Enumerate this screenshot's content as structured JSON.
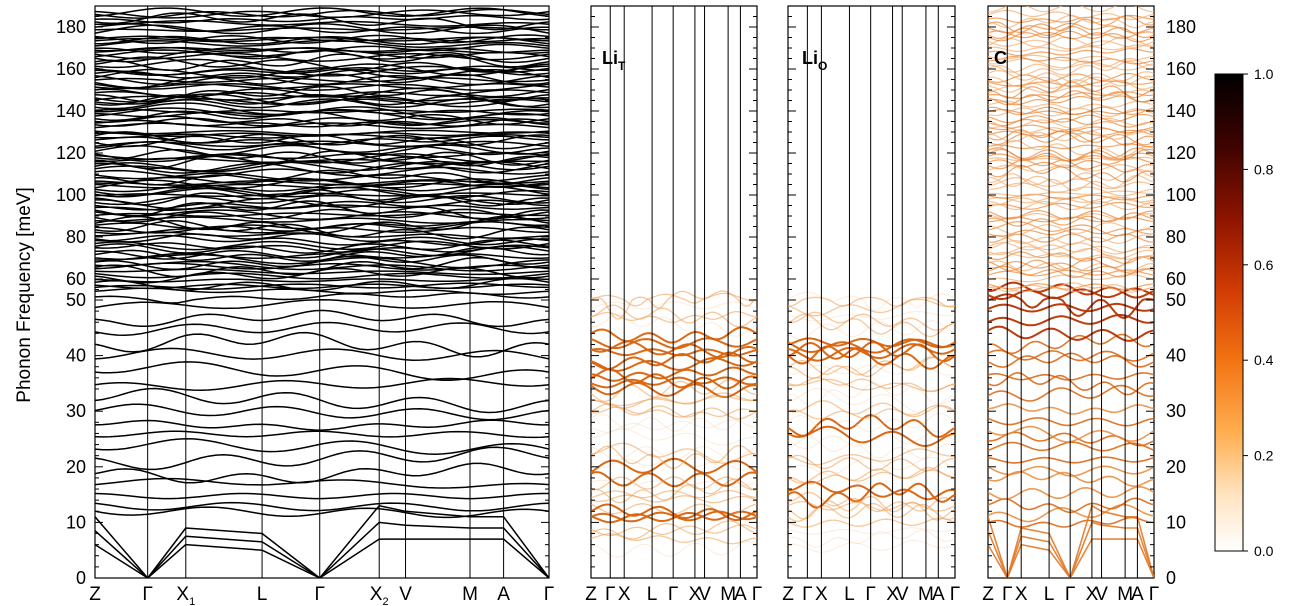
{
  "chart_data": [
    {
      "type": "line",
      "panel": "full",
      "title": "",
      "ylabel": "Phonon Frequency [meV]",
      "ylim": [
        0,
        190
      ],
      "x_ticks": [
        "Z",
        "Γ",
        "X₁",
        "L",
        "Γ",
        "X₂",
        "V",
        "M",
        "A",
        "Γ"
      ],
      "y_ticks": [
        0,
        10,
        20,
        30,
        40,
        50,
        60,
        80,
        100,
        120,
        140,
        160,
        180
      ],
      "y_scale": "piecewise-linear (0–50 compressed, 50–190 expanded)",
      "series_color": "#000000",
      "acoustic_branches_meV": {
        "Z": [
          11,
          10,
          4
        ],
        "Γ": [
          0,
          0,
          0
        ],
        "X₁": [
          11,
          9,
          7
        ],
        "L": [
          10,
          8,
          5
        ],
        "Γ2": [
          0,
          0,
          0
        ],
        "X₂": [
          14,
          11,
          7
        ],
        "V": [
          14,
          11,
          7
        ],
        "M": [
          13,
          10,
          8
        ],
        "A": [
          12,
          10,
          8
        ],
        "Γ3": [
          0,
          0,
          0
        ]
      },
      "optical_flat_levels_meV": [
        12,
        14,
        15.5,
        16.5,
        18,
        19,
        21,
        25,
        27,
        30,
        31.5,
        33,
        35,
        37,
        38.5,
        40,
        42,
        44,
        45.5,
        47,
        48.5,
        50,
        52,
        54
      ]
    },
    {
      "type": "line",
      "panel": "projected",
      "title": "LiT",
      "x_ticks": [
        "Z",
        "Γ",
        "X₁",
        "L",
        "Γ",
        "X₂",
        "V",
        "M",
        "A",
        "Γ"
      ],
      "ylim": [
        0,
        190
      ],
      "strong_bands_meV": [
        11,
        12,
        19,
        35,
        36,
        39,
        41,
        44
      ],
      "weak_bands_meV": [
        8,
        14,
        16,
        22,
        30,
        32,
        47,
        50
      ]
    },
    {
      "type": "line",
      "panel": "projected",
      "title": "LiO",
      "x_ticks": [
        "Z",
        "Γ",
        "X₁",
        "L",
        "Γ",
        "X₂",
        "V",
        "M",
        "A",
        "Γ"
      ],
      "ylim": [
        0,
        190
      ],
      "strong_bands_meV": [
        15,
        26,
        40,
        42
      ],
      "weak_bands_meV": [
        10,
        13,
        18,
        22,
        30,
        35,
        38,
        46,
        49
      ]
    },
    {
      "type": "line",
      "panel": "projected",
      "title": "C",
      "x_ticks": [
        "Z",
        "Γ",
        "X₁",
        "L",
        "Γ",
        "X₂",
        "V",
        "M",
        "A",
        "Γ"
      ],
      "ylim": [
        0,
        190
      ],
      "strong_bands_meV": [
        16,
        21,
        31,
        33,
        35,
        37,
        40,
        42,
        44,
        47,
        48,
        49,
        50,
        51,
        52,
        54
      ],
      "weak_bands_meV": [
        8,
        12,
        18,
        26,
        28,
        30,
        45
      ]
    }
  ],
  "colorbar": {
    "ticks": [
      "0.0",
      "0.2",
      "0.4",
      "0.6",
      "0.8",
      "1.0"
    ],
    "range": [
      0,
      1
    ],
    "colors": [
      "#ffffff",
      "#ffd9a8",
      "#ffa234",
      "#ee6a0c",
      "#c42c02",
      "#7a0e00",
      "#000000"
    ]
  },
  "labels": {
    "ylabel": "Phonon Frequency [meV]",
    "lit_main": "Li",
    "lit_sub": "T",
    "lio_main": "Li",
    "lio_sub": "O",
    "c_main": "C",
    "main_x_ticks": [
      "Z",
      "Γ",
      "X",
      "L",
      "Γ",
      "X",
      "V",
      "M",
      "A",
      "Γ"
    ],
    "main_x_subs": [
      "",
      "",
      "1",
      "",
      "",
      "2",
      "",
      "",
      "",
      ""
    ],
    "small_x_ticks": [
      "Z",
      "Γ",
      "X",
      "L",
      "Γ",
      "X",
      "V",
      "M",
      "A",
      "Γ"
    ]
  }
}
